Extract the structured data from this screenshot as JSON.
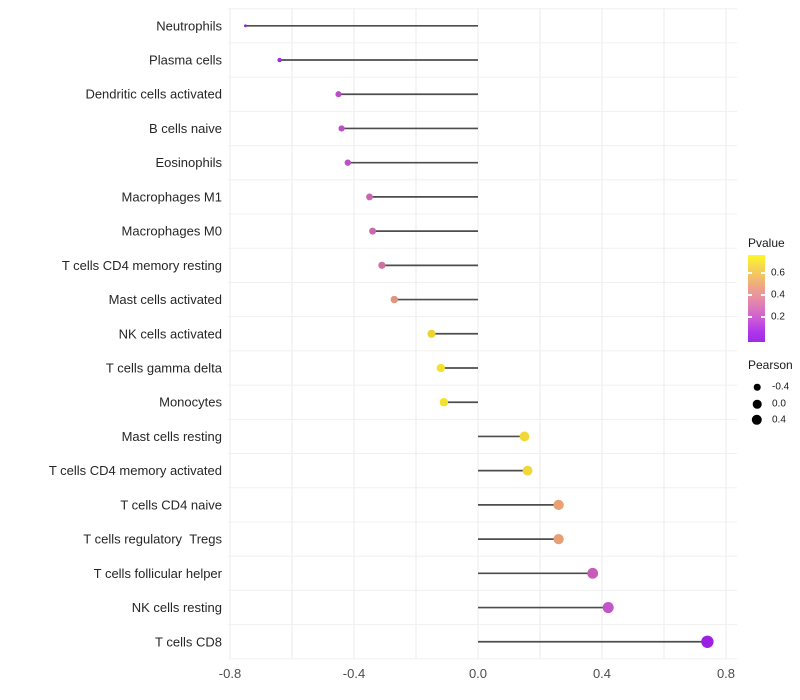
{
  "chart_data": {
    "type": "scatter",
    "variant": "lollipop",
    "title": "",
    "xlabel": "",
    "ylabel": "",
    "grid": true,
    "xlim": [
      -0.81,
      0.84
    ],
    "x_ticks": {
      "values": [
        -0.8,
        -0.4,
        0.0,
        0.4,
        0.8
      ],
      "labels": [
        "-0.8",
        "-0.4",
        "0.0",
        "0.4",
        "0.8"
      ]
    },
    "grid_step": 0.2,
    "categories": [
      "Neutrophils",
      "Plasma cells",
      "Dendritic cells activated",
      "B cells naive",
      "Eosinophils",
      "Macrophages M1",
      "Macrophages M0",
      "T cells CD4 memory resting",
      "Mast cells activated",
      "NK cells activated",
      "T cells gamma delta",
      "Monocytes",
      "Mast cells resting",
      "T cells CD4 memory activated",
      "T cells CD4 naive",
      "T cells regulatory  Tregs",
      "T cells follicular helper",
      "NK cells resting",
      "T cells CD8"
    ],
    "series": [
      {
        "name": "Pearson",
        "values": [
          -0.75,
          -0.64,
          -0.45,
          -0.44,
          -0.42,
          -0.35,
          -0.34,
          -0.31,
          -0.27,
          -0.15,
          -0.12,
          -0.11,
          0.15,
          0.16,
          0.26,
          0.26,
          0.37,
          0.42,
          0.74
        ]
      }
    ],
    "points": [
      {
        "category": "Neutrophils",
        "pearson": -0.75,
        "color": "#8d28cc"
      },
      {
        "category": "Plasma cells",
        "pearson": -0.64,
        "color": "#9c2fd8"
      },
      {
        "category": "Dendritic cells activated",
        "pearson": -0.45,
        "color": "#ba4ec6"
      },
      {
        "category": "B cells naive",
        "pearson": -0.44,
        "color": "#bb50c6"
      },
      {
        "category": "Eosinophils",
        "pearson": -0.42,
        "color": "#bc53c4"
      },
      {
        "category": "Macrophages M1",
        "pearson": -0.35,
        "color": "#ca66ae"
      },
      {
        "category": "Macrophages M0",
        "pearson": -0.34,
        "color": "#cc69ac"
      },
      {
        "category": "T cells CD4 memory resting",
        "pearson": -0.31,
        "color": "#d0719f"
      },
      {
        "category": "Mast cells activated",
        "pearson": -0.27,
        "color": "#e2937b"
      },
      {
        "category": "NK cells activated",
        "pearson": -0.15,
        "color": "#ecd32f"
      },
      {
        "category": "T cells gamma delta",
        "pearson": -0.12,
        "color": "#f3e22c"
      },
      {
        "category": "Monocytes",
        "pearson": -0.11,
        "color": "#f3e22c"
      },
      {
        "category": "Mast cells resting",
        "pearson": 0.15,
        "color": "#f2d73a"
      },
      {
        "category": "T cells CD4 memory activated",
        "pearson": 0.16,
        "color": "#f1d739"
      },
      {
        "category": "T cells CD4 naive",
        "pearson": 0.26,
        "color": "#e8a173"
      },
      {
        "category": "T cells regulatory  Tregs",
        "pearson": 0.26,
        "color": "#e7a075"
      },
      {
        "category": "T cells follicular helper",
        "pearson": 0.37,
        "color": "#c75bb8"
      },
      {
        "category": "NK cells resting",
        "pearson": 0.42,
        "color": "#c156c9"
      },
      {
        "category": "T cells CD8",
        "pearson": 0.74,
        "color": "#9b20e4"
      }
    ],
    "legend_position": "right"
  },
  "legend_pvalue": {
    "title": "Pvalue",
    "tick_labels": [
      "0.6",
      "0.4",
      "0.2"
    ],
    "gradient_stops": [
      "#fcf826",
      "#f6da4c",
      "#f2c068",
      "#eda488",
      "#e78da6",
      "#da74c0",
      "#c957d8",
      "#b138ea",
      "#9c2be4"
    ]
  },
  "legend_pearson": {
    "title": "Pearson",
    "items": [
      {
        "label": "-0.4",
        "radius": 3.3
      },
      {
        "label": "0.0",
        "radius": 4.3
      },
      {
        "label": "0.4",
        "radius": 5.2
      }
    ]
  },
  "colors": {
    "stem": "#4d4d4d",
    "gridline": "#ebebeb",
    "axis_text": "#4d4d4d",
    "category_text": "#262626",
    "legend_dot": "#000000",
    "background": "#ffffff"
  }
}
